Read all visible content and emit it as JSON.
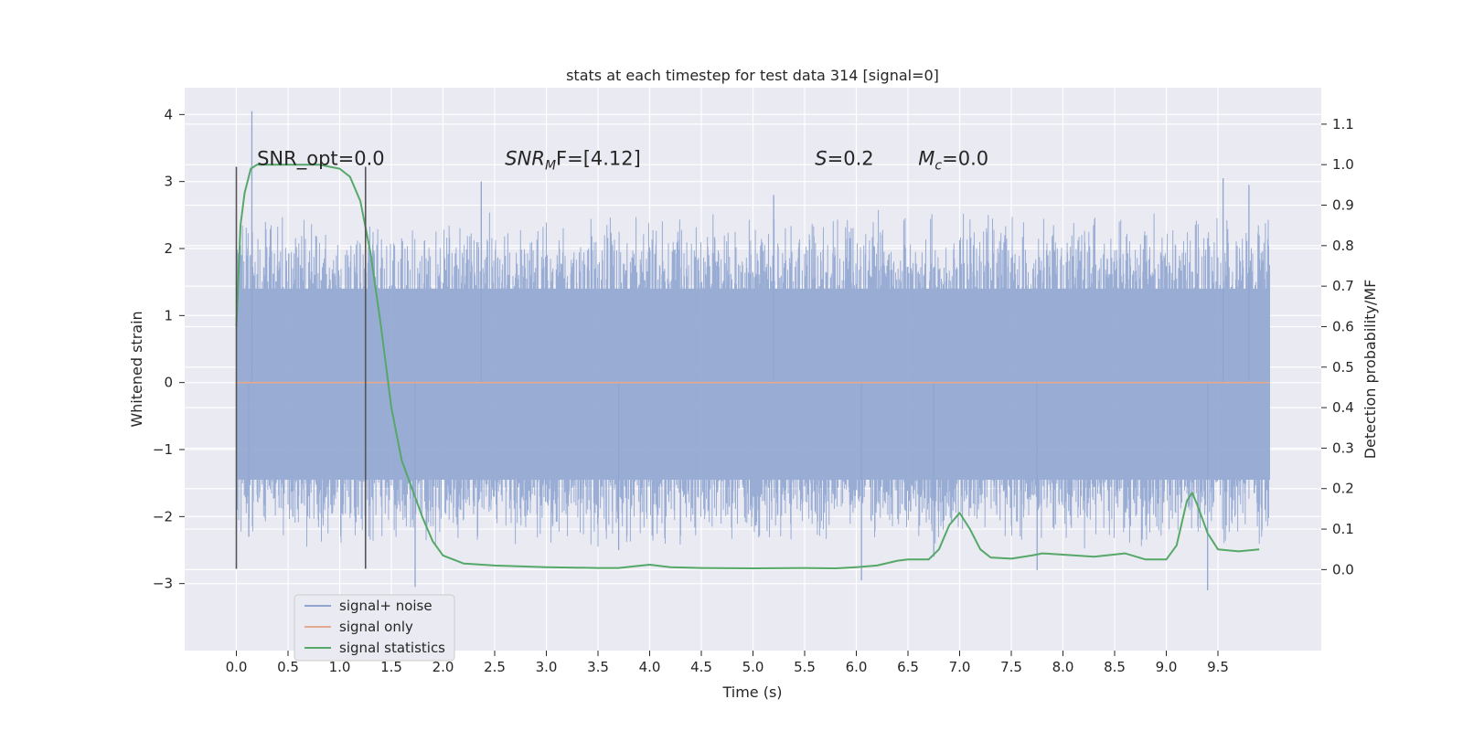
{
  "chart_data": {
    "type": "line",
    "title": "stats at each timestep for test data 314 [signal=0]",
    "xlabel": "Time (s)",
    "ylabel": "Whitened strain",
    "y2label": "Detection probability/MF",
    "xlim": [
      -0.5,
      10.5
    ],
    "ylim": [
      -4.0,
      4.4
    ],
    "y2lim": [
      -0.2,
      1.19
    ],
    "x_ticks": [
      "0.0",
      "0.5",
      "1.0",
      "1.5",
      "2.0",
      "2.5",
      "3.0",
      "3.5",
      "4.0",
      "4.5",
      "5.0",
      "5.5",
      "6.0",
      "6.5",
      "7.0",
      "7.5",
      "8.0",
      "8.5",
      "9.0",
      "9.5"
    ],
    "y_ticks": [
      "4",
      "3",
      "2",
      "1",
      "0",
      "−1",
      "−2",
      "−3"
    ],
    "y2_ticks": [
      "1.1",
      "1.0",
      "0.9",
      "0.8",
      "0.7",
      "0.6",
      "0.5",
      "0.4",
      "0.3",
      "0.2",
      "0.1",
      "0.0"
    ],
    "grid": true,
    "legend_position": "lower-left",
    "annotations": [
      {
        "text": "SNR_opt=0.0",
        "x": 0.2,
        "y": 3.25
      },
      {
        "text": "SNR",
        "sub": "M",
        "suffix": "F=[4.12]",
        "italic_prefix": true,
        "x": 2.6,
        "y": 3.25
      },
      {
        "text": "S",
        "suffix": "=0.2",
        "italic_prefix": true,
        "x": 5.6,
        "y": 3.25
      },
      {
        "text": "M",
        "sub": "c",
        "suffix": "=0.0",
        "italic_prefix": true,
        "x": 6.6,
        "y": 3.25
      }
    ],
    "vertical_markers": [
      {
        "x": 0.0,
        "y_from": -2.78,
        "y_to": 3.22
      },
      {
        "x": 1.25,
        "y_from": -2.78,
        "y_to": 3.22
      }
    ],
    "series": [
      {
        "name": "signal+ noise",
        "color": "#8fa5d0",
        "noise": {
          "x_start": 0.0,
          "x_end": 10.0,
          "band_low": -1.45,
          "band_high": 1.4,
          "typical_peak_high": 2.6,
          "typical_peak_low": -2.5,
          "spikes": [
            [
              0.15,
              4.05
            ],
            [
              0.12,
              -2.3
            ],
            [
              1.73,
              -3.05
            ],
            [
              2.37,
              3.0
            ],
            [
              3.7,
              -2.5
            ],
            [
              5.2,
              2.8
            ],
            [
              6.05,
              -2.95
            ],
            [
              6.75,
              -2.6
            ],
            [
              7.75,
              -2.8
            ],
            [
              9.4,
              -3.1
            ],
            [
              9.55,
              3.05
            ],
            [
              9.8,
              2.95
            ]
          ]
        }
      },
      {
        "name": "signal only",
        "color": "#e5a98f",
        "x": [
          0.0,
          10.0
        ],
        "y": [
          0.0,
          0.0
        ]
      },
      {
        "name": "signal statistics",
        "color": "#55a868",
        "axis": "y2",
        "x": [
          0.0,
          0.04,
          0.08,
          0.14,
          0.2,
          0.3,
          0.5,
          0.8,
          1.0,
          1.1,
          1.2,
          1.3,
          1.4,
          1.5,
          1.6,
          1.7,
          1.8,
          1.9,
          2.0,
          2.2,
          2.5,
          3.0,
          3.5,
          3.7,
          3.85,
          4.0,
          4.2,
          4.5,
          5.0,
          5.5,
          5.8,
          6.0,
          6.2,
          6.4,
          6.5,
          6.7,
          6.8,
          6.9,
          7.0,
          7.1,
          7.2,
          7.3,
          7.5,
          7.7,
          7.8,
          8.0,
          8.3,
          8.6,
          8.8,
          9.0,
          9.1,
          9.2,
          9.25,
          9.3,
          9.4,
          9.5,
          9.7,
          9.9
        ],
        "y": [
          0.6,
          0.85,
          0.93,
          0.99,
          1.0,
          1.0,
          1.0,
          1.0,
          0.99,
          0.97,
          0.91,
          0.78,
          0.6,
          0.4,
          0.27,
          0.2,
          0.13,
          0.07,
          0.035,
          0.015,
          0.01,
          0.006,
          0.004,
          0.004,
          0.008,
          0.012,
          0.006,
          0.004,
          0.003,
          0.004,
          0.003,
          0.006,
          0.01,
          0.022,
          0.025,
          0.025,
          0.05,
          0.11,
          0.14,
          0.1,
          0.05,
          0.03,
          0.027,
          0.035,
          0.04,
          0.037,
          0.032,
          0.04,
          0.025,
          0.025,
          0.06,
          0.17,
          0.19,
          0.16,
          0.09,
          0.05,
          0.045,
          0.05
        ]
      }
    ]
  }
}
